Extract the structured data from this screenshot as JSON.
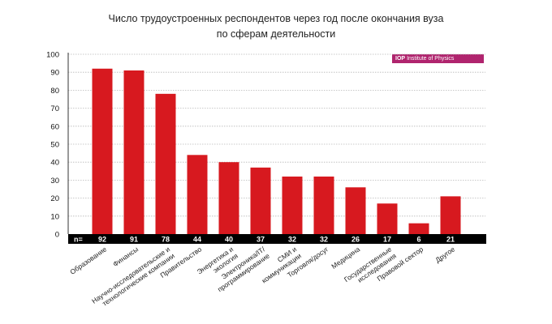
{
  "chart_data": {
    "type": "bar",
    "title_lines": [
      "Число трудоустроенных респондентов через год после окончания вуза",
      "по сферам деятельности"
    ],
    "logo": {
      "mark": "IOP",
      "text": "Institute of Physics"
    },
    "n_label": "n=",
    "categories": [
      [
        "Образование"
      ],
      [
        "Финансы"
      ],
      [
        "Научно-исследовательские и",
        "технологические компании"
      ],
      [
        "Правительство"
      ],
      [
        "Энергетика и",
        "экология"
      ],
      [
        "Электроника/IT/",
        "программирование"
      ],
      [
        "СМИ и",
        "коммуникации"
      ],
      [
        "Торговля/досуг"
      ],
      [
        "Медицина"
      ],
      [
        "Государственные",
        "исследования"
      ],
      [
        "Правовой сектор"
      ],
      [
        "Другое"
      ]
    ],
    "values": [
      92,
      91,
      78,
      44,
      40,
      37,
      32,
      32,
      26,
      17,
      6,
      21
    ],
    "n_values": [
      "92",
      "91",
      "78",
      "44",
      "40",
      "37",
      "32",
      "32",
      "26",
      "17",
      "6",
      "21"
    ],
    "y_ticks": [
      "0",
      "10",
      "20",
      "30",
      "40",
      "50",
      "60",
      "70",
      "80",
      "90",
      "100"
    ],
    "ylim": [
      0,
      100
    ],
    "grid": true,
    "bar_color": "#d7191f",
    "logo_color": "#b0246e"
  }
}
